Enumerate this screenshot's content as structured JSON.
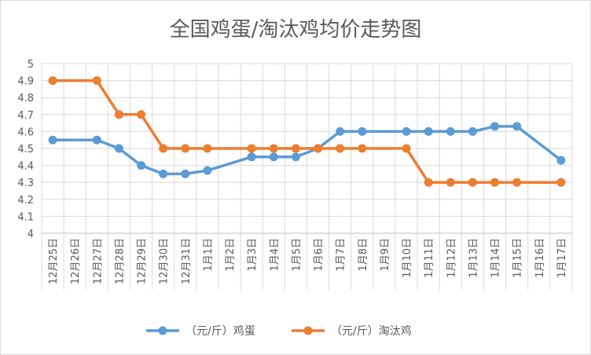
{
  "chart_data": {
    "type": "line",
    "title": "全国鸡蛋/淘汰鸡均价走势图",
    "xlabel": "",
    "ylabel": "",
    "categories": [
      "12月25日",
      "12月26日",
      "12月27日",
      "12月28日",
      "12月29日",
      "12月30日",
      "12月31日",
      "1月1日",
      "1月2日",
      "1月3日",
      "1月4日",
      "1月5日",
      "1月6日",
      "1月7日",
      "1月8日",
      "1月9日",
      "1月10日",
      "1月11日",
      "1月12日",
      "1月13日",
      "1月14日",
      "1月15日",
      "1月16日",
      "1月17日"
    ],
    "yticks": [
      "4",
      "4.1",
      "4.2",
      "4.3",
      "4.4",
      "4.5",
      "4.6",
      "4.7",
      "4.8",
      "4.9",
      "5"
    ],
    "ylim": [
      4,
      5
    ],
    "grid": true,
    "legend_position": "bottom",
    "series": [
      {
        "name": "（元/斤）鸡蛋",
        "color": "#5b9bd5",
        "values": [
          4.55,
          null,
          4.55,
          4.5,
          4.4,
          4.35,
          4.35,
          4.37,
          null,
          4.45,
          4.45,
          4.45,
          4.5,
          4.6,
          4.6,
          null,
          4.6,
          4.6,
          4.6,
          4.6,
          4.63,
          4.63,
          null,
          4.43
        ]
      },
      {
        "name": "（元/斤）淘汰鸡",
        "color": "#ed7d31",
        "values": [
          4.9,
          null,
          4.9,
          4.7,
          4.7,
          4.5,
          4.5,
          4.5,
          null,
          4.5,
          4.5,
          4.5,
          4.5,
          4.5,
          4.5,
          null,
          4.5,
          4.3,
          4.3,
          4.3,
          4.3,
          4.3,
          null,
          4.3
        ]
      }
    ]
  }
}
